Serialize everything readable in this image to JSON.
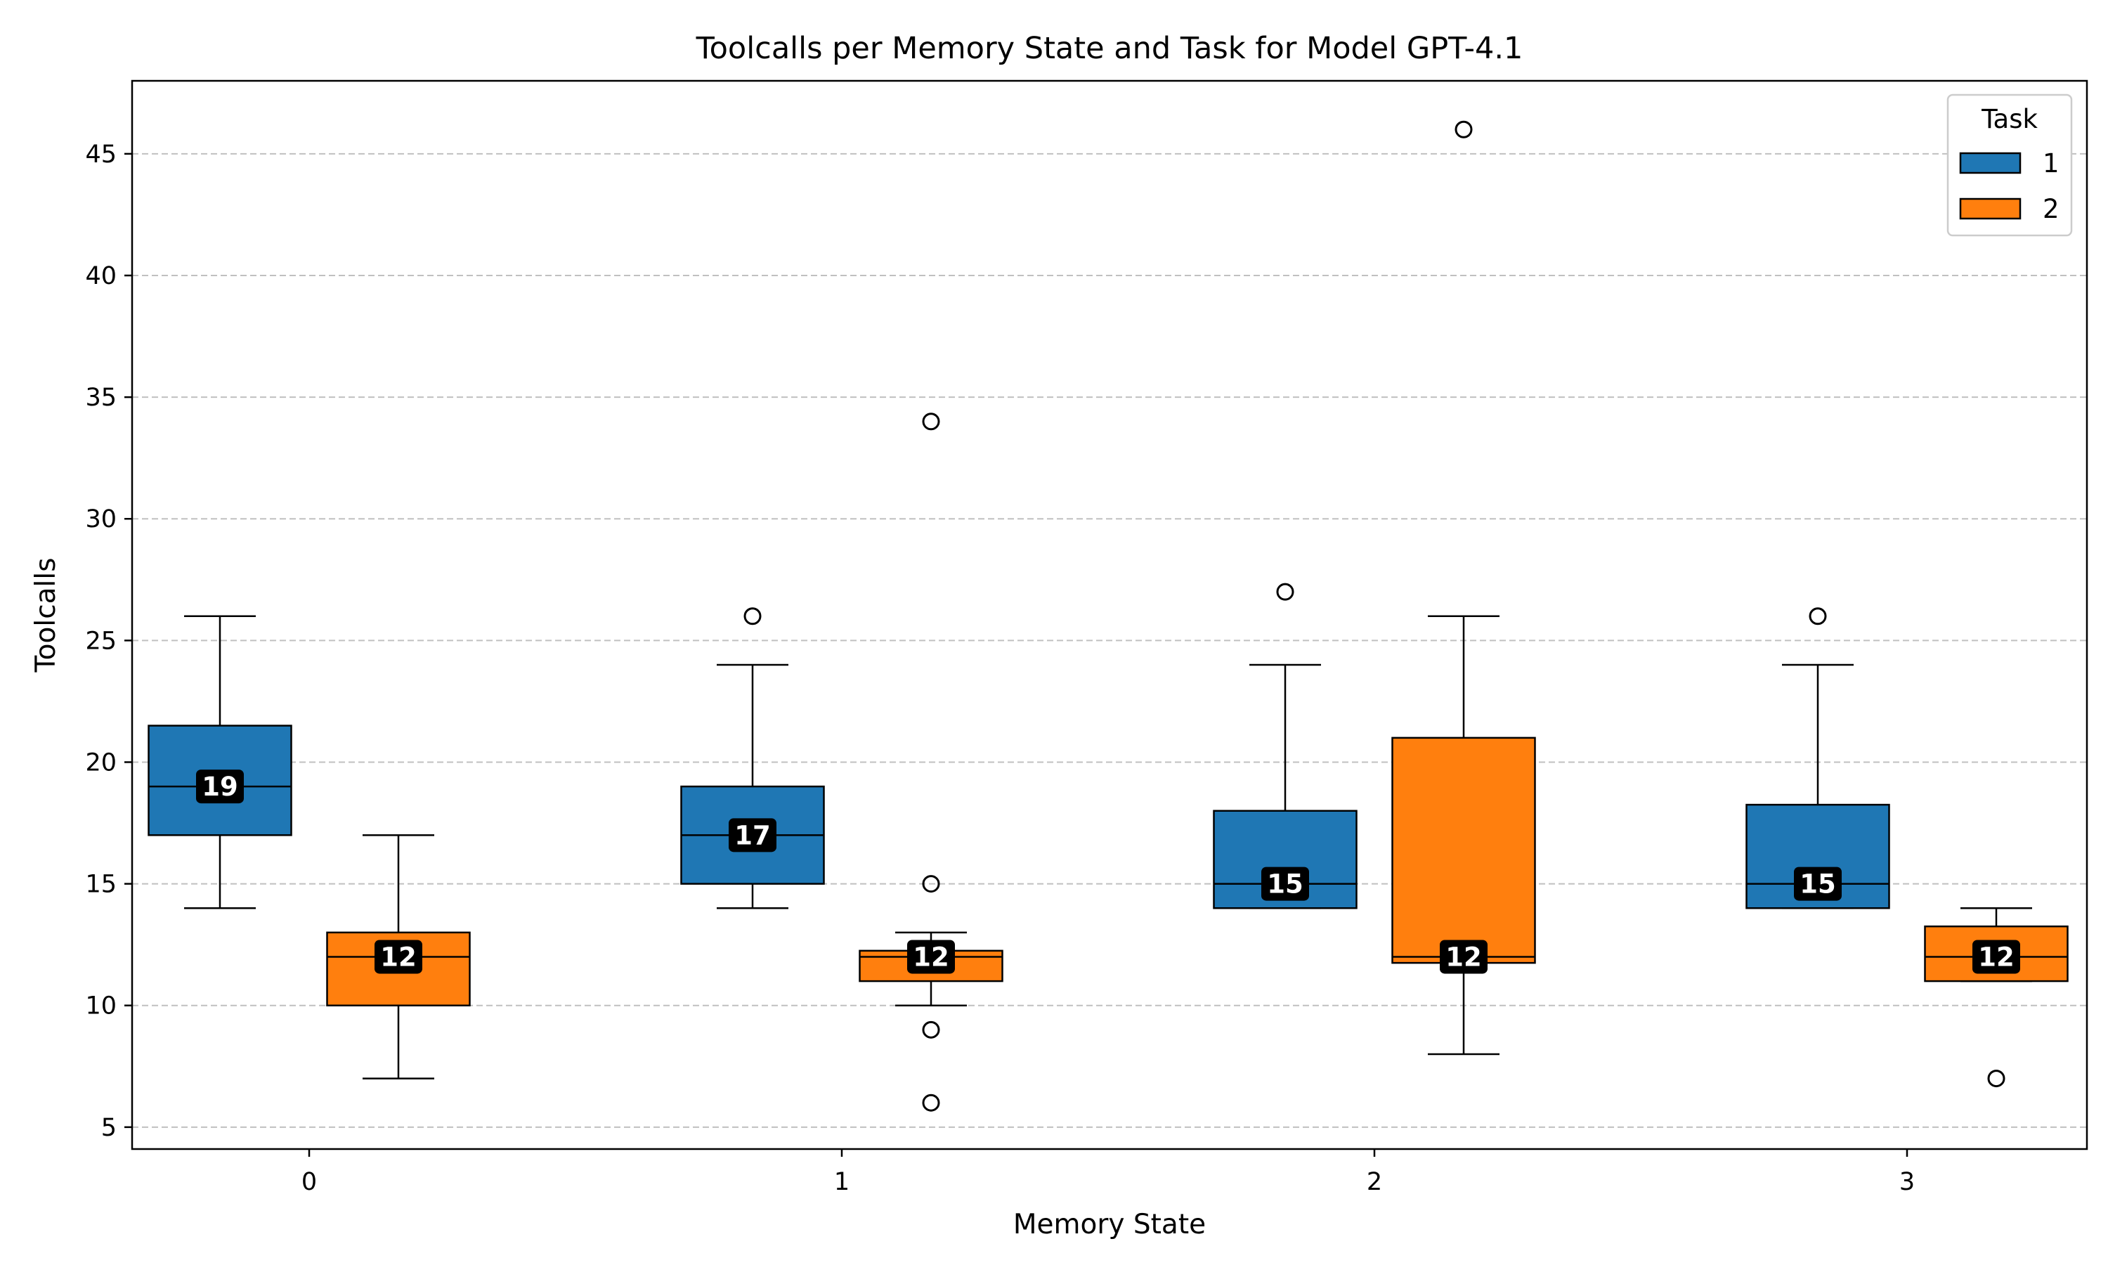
{
  "chart_data": {
    "type": "box",
    "title": "Toolcalls per Memory State and Task for Model GPT-4.1",
    "xlabel": "Memory State",
    "ylabel": "Toolcalls",
    "categories": [
      "0",
      "1",
      "2",
      "3"
    ],
    "ylim": [
      4.1,
      48
    ],
    "yticks": [
      5,
      10,
      15,
      20,
      25,
      30,
      35,
      40,
      45
    ],
    "grid": "y-dashed",
    "legend": {
      "title": "Task",
      "position": "top-right"
    },
    "series": [
      {
        "name": "1",
        "color": "#1f77b4",
        "boxes": [
          {
            "category": "0",
            "whisker_low": 14,
            "q1": 17,
            "median": 19,
            "q3": 21.5,
            "whisker_high": 26,
            "outliers": [],
            "median_label": "19"
          },
          {
            "category": "1",
            "whisker_low": 14,
            "q1": 15,
            "median": 17,
            "q3": 19,
            "whisker_high": 24,
            "outliers": [
              26
            ],
            "median_label": "17"
          },
          {
            "category": "2",
            "whisker_low": 14,
            "q1": 14,
            "median": 15,
            "q3": 18,
            "whisker_high": 24,
            "outliers": [
              27
            ],
            "median_label": "15"
          },
          {
            "category": "3",
            "whisker_low": 14,
            "q1": 14,
            "median": 15,
            "q3": 18.25,
            "whisker_high": 24,
            "outliers": [
              26
            ],
            "median_label": "15"
          }
        ]
      },
      {
        "name": "2",
        "color": "#ff7f0e",
        "boxes": [
          {
            "category": "0",
            "whisker_low": 7,
            "q1": 10,
            "median": 12,
            "q3": 13,
            "whisker_high": 17,
            "outliers": [],
            "median_label": "12"
          },
          {
            "category": "1",
            "whisker_low": 10,
            "q1": 11,
            "median": 12,
            "q3": 12.25,
            "whisker_high": 13,
            "outliers": [
              34,
              15,
              9,
              6
            ],
            "median_label": "12"
          },
          {
            "category": "2",
            "whisker_low": 8,
            "q1": 11.75,
            "median": 12,
            "q3": 21,
            "whisker_high": 26,
            "outliers": [
              46
            ],
            "median_label": "12"
          },
          {
            "category": "3",
            "whisker_low": 11,
            "q1": 11,
            "median": 12,
            "q3": 13.25,
            "whisker_high": 14,
            "outliers": [
              7
            ],
            "median_label": "12"
          }
        ]
      }
    ]
  }
}
